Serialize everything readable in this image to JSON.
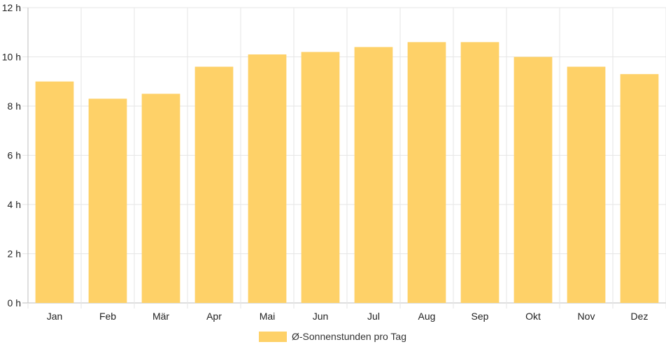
{
  "chart_data": {
    "type": "bar",
    "categories": [
      "Jan",
      "Feb",
      "Mär",
      "Apr",
      "Mai",
      "Jun",
      "Jul",
      "Aug",
      "Sep",
      "Okt",
      "Nov",
      "Dez"
    ],
    "series": [
      {
        "name": "Ø-Sonnenstunden pro Tag",
        "values": [
          9.0,
          8.3,
          8.5,
          9.6,
          10.1,
          10.2,
          10.4,
          10.6,
          10.6,
          10.0,
          9.6,
          9.3
        ],
        "color": "#fed168"
      }
    ],
    "y_ticks": [
      "0 h",
      "2 h",
      "4 h",
      "6 h",
      "8 h",
      "10 h",
      "12 h"
    ],
    "ylim": [
      0,
      12
    ],
    "grid": true,
    "legend_position": "bottom"
  }
}
